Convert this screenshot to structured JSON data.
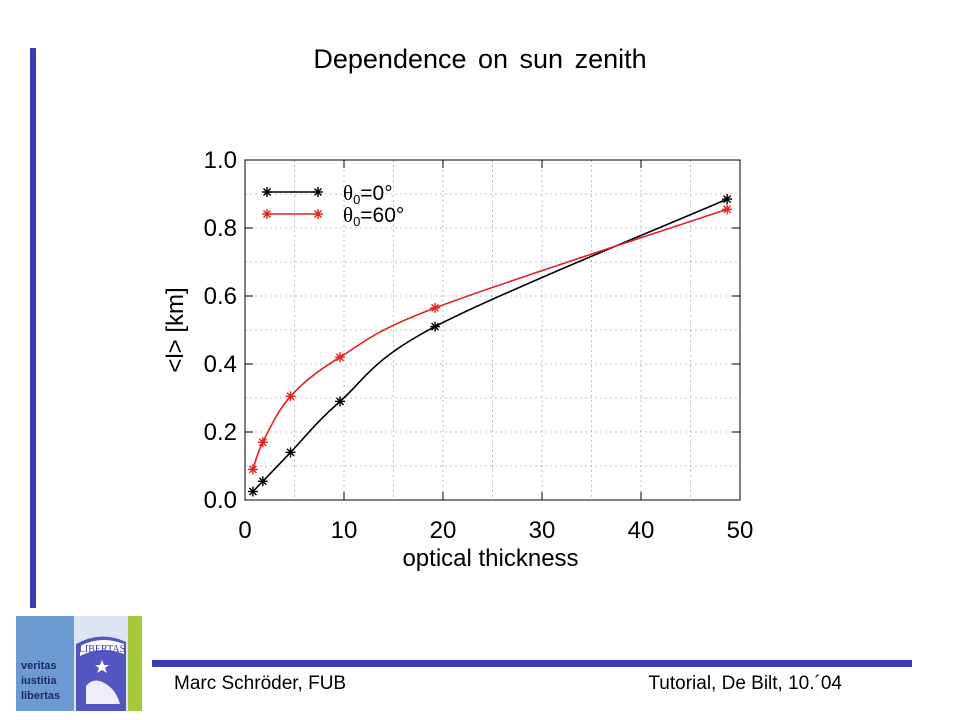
{
  "slide": {
    "title": "Dependence on sun zenith",
    "footer_left": "Marc Schröder, FUB",
    "footer_right": "Tutorial, De Bilt, 10.´04"
  },
  "logo": {
    "text_lines": [
      "veritas",
      "iustitia",
      "libertas"
    ],
    "seal_text": "LIBERTAS",
    "colors": {
      "blue": "#6b9bd2",
      "green": "#a8c83c",
      "accent": "#3a3cb8"
    }
  },
  "chart_data": {
    "type": "line",
    "xlabel": "optical thickness",
    "ylabel": "<l> [km]",
    "xlim": [
      0,
      50
    ],
    "ylim": [
      0,
      1.0
    ],
    "xticks": [
      "0",
      "10",
      "20",
      "30",
      "40",
      "50"
    ],
    "yticks": [
      "0.0",
      "0.2",
      "0.4",
      "0.6",
      "0.8",
      "1.0"
    ],
    "grid": true,
    "legend_position": "top-left",
    "series": [
      {
        "name": "θ₀=0°",
        "legend_symbol": "θ",
        "legend_sub": "0",
        "legend_value": "=0°",
        "color": "#000000",
        "x": [
          0.8,
          1.8,
          4.6,
          9.6,
          19.2,
          48.7
        ],
        "y": [
          0.025,
          0.055,
          0.14,
          0.29,
          0.51,
          0.885
        ]
      },
      {
        "name": "θ₀=60°",
        "legend_symbol": "θ",
        "legend_sub": "0",
        "legend_value": "=60°",
        "color": "#e8201e",
        "x": [
          0.8,
          1.8,
          4.6,
          9.6,
          19.2,
          48.7
        ],
        "y": [
          0.09,
          0.17,
          0.305,
          0.42,
          0.565,
          0.855
        ]
      }
    ]
  }
}
